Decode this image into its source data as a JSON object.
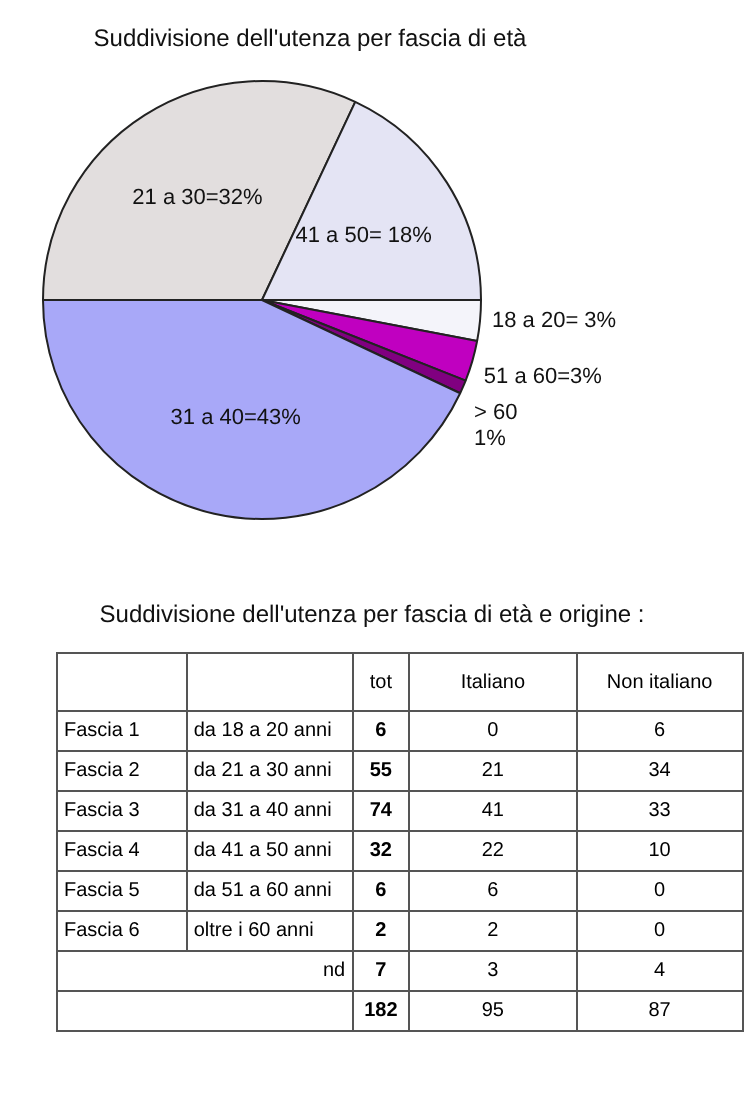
{
  "chart_data": [
    {
      "type": "pie",
      "title": "Suddivisione dell'utenza per fascia di età",
      "categories": [
        "21 a 30=32%",
        "41 a 50= 18%",
        "18 a 20= 3%",
        "51 a 60=3%",
        "> 60\n1%",
        "31 a 40=43%"
      ],
      "values": [
        32,
        18,
        3,
        3,
        1,
        43
      ],
      "colors": [
        "#e2dede",
        "#e4e4f4",
        "#f4f4fa",
        "#c000c0",
        "#800080",
        "#a8a8f8"
      ]
    },
    {
      "type": "other",
      "title": "Suddivisione dell'utenza per fascia di età e origine :",
      "data_labels": true,
      "categories": [
        "Fascia 1",
        "Fascia 2",
        "Fascia 3",
        "Fascia 4",
        "Fascia 5",
        "Fascia 6",
        "nd"
      ],
      "totals": [
        "182",
        "95",
        "87"
      ],
      "annotations": [
        "da 18 a 20 anni",
        "da 21 a 30 anni",
        "da 31 a 40 anni",
        "da 41 a 50 anni",
        "da 51 a 60 anni",
        "oltre i 60 anni"
      ],
      "series": [
        {
          "name": "tot",
          "values": [
            6,
            55,
            74,
            32,
            6,
            2,
            7
          ]
        },
        {
          "name": "Italiano",
          "values": [
            0,
            21,
            41,
            22,
            6,
            2,
            3
          ]
        },
        {
          "name": "Non italiano",
          "values": [
            6,
            34,
            33,
            10,
            0,
            0,
            4
          ]
        }
      ]
    }
  ]
}
